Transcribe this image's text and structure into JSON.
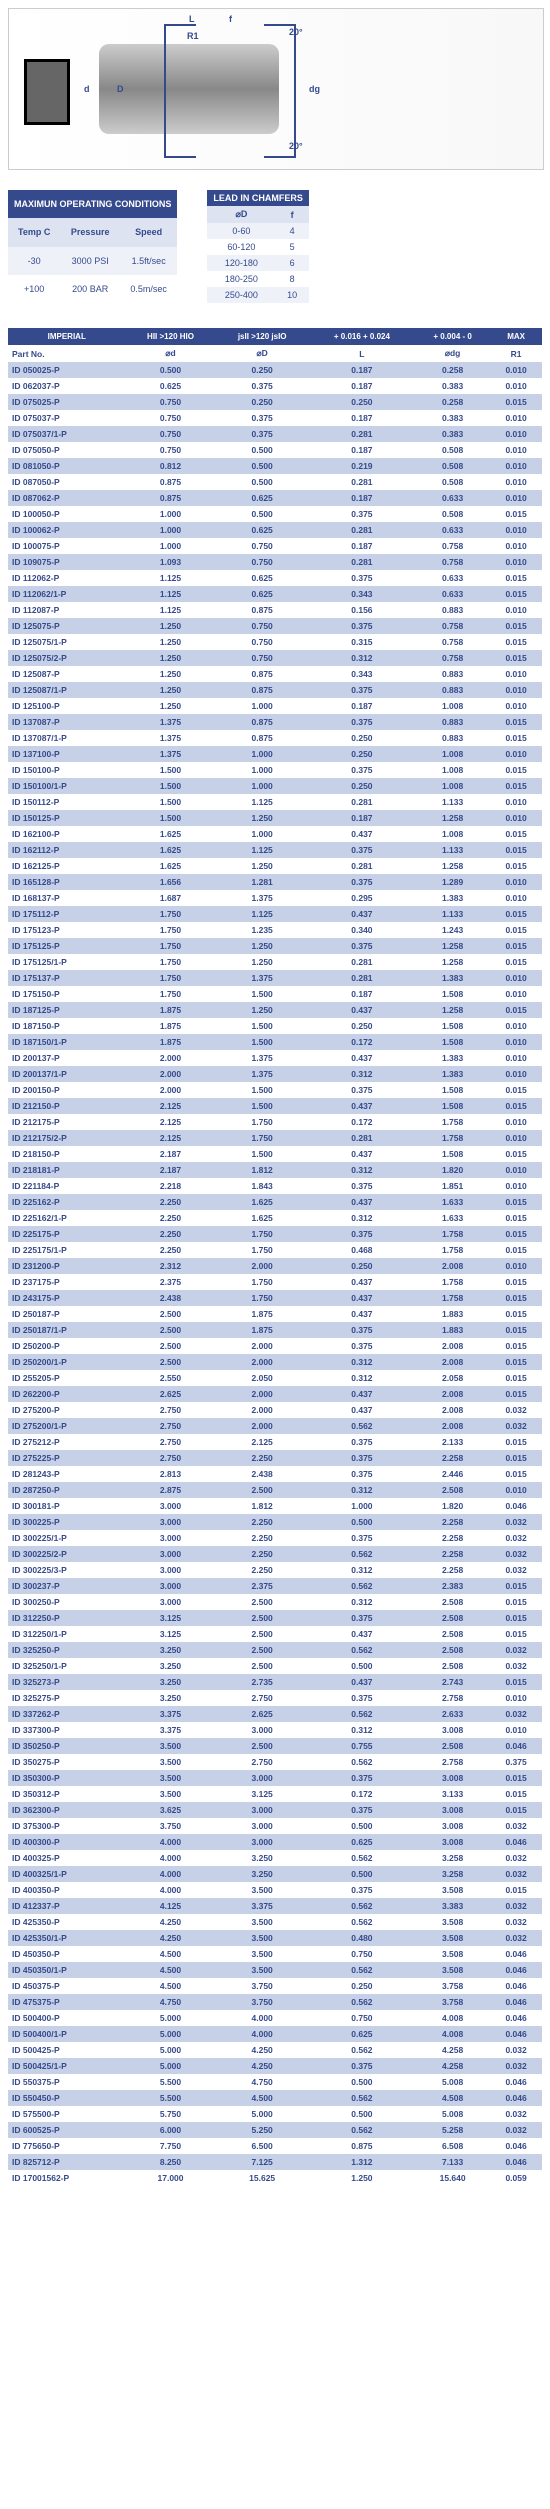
{
  "diagram": {
    "labels": {
      "d": "d",
      "D": "D",
      "dg": "dg",
      "L": "L",
      "f": "f",
      "R1": "R1",
      "angle": "20°"
    }
  },
  "operating": {
    "title": "MAXIMUN OPERATING CONDITIONS",
    "headers": [
      "Temp C",
      "Pressure",
      "Speed"
    ],
    "rows": [
      [
        "-30",
        "3000 PSI",
        "1.5ft/sec"
      ],
      [
        "+100",
        "200 BAR",
        "0.5m/sec"
      ]
    ]
  },
  "chamfers": {
    "title": "LEAD IN CHAMFERS",
    "headers": [
      "⌀D",
      "f"
    ],
    "rows": [
      [
        "0-60",
        "4"
      ],
      [
        "60-120",
        "5"
      ],
      [
        "120-180",
        "6"
      ],
      [
        "180-250",
        "8"
      ],
      [
        "250-400",
        "10"
      ]
    ]
  },
  "main": {
    "header": {
      "imperial": "IMPERIAL",
      "c1": "HII\n>120 HIO",
      "c2": "jsII\n>120 jsIO",
      "c3": "+ 0.016\n+ 0.024",
      "c4": "+ 0.004\n- 0",
      "c5": "MAX"
    },
    "sub": {
      "partno": "Part No.",
      "d": "⌀d",
      "D": "⌀D",
      "L": "L",
      "dg": "⌀dg",
      "R1": "R1"
    },
    "rows": [
      [
        "ID 050025-P",
        "0.500",
        "0.250",
        "0.187",
        "0.258",
        "0.010"
      ],
      [
        "ID 062037-P",
        "0.625",
        "0.375",
        "0.187",
        "0.383",
        "0.010"
      ],
      [
        "ID 075025-P",
        "0.750",
        "0.250",
        "0.250",
        "0.258",
        "0.015"
      ],
      [
        "ID 075037-P",
        "0.750",
        "0.375",
        "0.187",
        "0.383",
        "0.010"
      ],
      [
        "ID 075037/1-P",
        "0.750",
        "0.375",
        "0.281",
        "0.383",
        "0.010"
      ],
      [
        "ID 075050-P",
        "0.750",
        "0.500",
        "0.187",
        "0.508",
        "0.010"
      ],
      [
        "ID 081050-P",
        "0.812",
        "0.500",
        "0.219",
        "0.508",
        "0.010"
      ],
      [
        "ID 087050-P",
        "0.875",
        "0.500",
        "0.281",
        "0.508",
        "0.010"
      ],
      [
        "ID 087062-P",
        "0.875",
        "0.625",
        "0.187",
        "0.633",
        "0.010"
      ],
      [
        "ID 100050-P",
        "1.000",
        "0.500",
        "0.375",
        "0.508",
        "0.015"
      ],
      [
        "ID 100062-P",
        "1.000",
        "0.625",
        "0.281",
        "0.633",
        "0.010"
      ],
      [
        "ID 100075-P",
        "1.000",
        "0.750",
        "0.187",
        "0.758",
        "0.010"
      ],
      [
        "ID 109075-P",
        "1.093",
        "0.750",
        "0.281",
        "0.758",
        "0.010"
      ],
      [
        "ID 112062-P",
        "1.125",
        "0.625",
        "0.375",
        "0.633",
        "0.015"
      ],
      [
        "ID 112062/1-P",
        "1.125",
        "0.625",
        "0.343",
        "0.633",
        "0.015"
      ],
      [
        "ID 112087-P",
        "1.125",
        "0.875",
        "0.156",
        "0.883",
        "0.010"
      ],
      [
        "ID 125075-P",
        "1.250",
        "0.750",
        "0.375",
        "0.758",
        "0.015"
      ],
      [
        "ID 125075/1-P",
        "1.250",
        "0.750",
        "0.315",
        "0.758",
        "0.015"
      ],
      [
        "ID 125075/2-P",
        "1.250",
        "0.750",
        "0.312",
        "0.758",
        "0.015"
      ],
      [
        "ID 125087-P",
        "1.250",
        "0.875",
        "0.343",
        "0.883",
        "0.010"
      ],
      [
        "ID 125087/1-P",
        "1.250",
        "0.875",
        "0.375",
        "0.883",
        "0.010"
      ],
      [
        "ID 125100-P",
        "1.250",
        "1.000",
        "0.187",
        "1.008",
        "0.010"
      ],
      [
        "ID 137087-P",
        "1.375",
        "0.875",
        "0.375",
        "0.883",
        "0.015"
      ],
      [
        "ID 137087/1-P",
        "1.375",
        "0.875",
        "0.250",
        "0.883",
        "0.015"
      ],
      [
        "ID 137100-P",
        "1.375",
        "1.000",
        "0.250",
        "1.008",
        "0.010"
      ],
      [
        "ID 150100-P",
        "1.500",
        "1.000",
        "0.375",
        "1.008",
        "0.015"
      ],
      [
        "ID 150100/1-P",
        "1.500",
        "1.000",
        "0.250",
        "1.008",
        "0.015"
      ],
      [
        "ID 150112-P",
        "1.500",
        "1.125",
        "0.281",
        "1.133",
        "0.010"
      ],
      [
        "ID 150125-P",
        "1.500",
        "1.250",
        "0.187",
        "1.258",
        "0.010"
      ],
      [
        "ID 162100-P",
        "1.625",
        "1.000",
        "0.437",
        "1.008",
        "0.015"
      ],
      [
        "ID 162112-P",
        "1.625",
        "1.125",
        "0.375",
        "1.133",
        "0.015"
      ],
      [
        "ID 162125-P",
        "1.625",
        "1.250",
        "0.281",
        "1.258",
        "0.015"
      ],
      [
        "ID 165128-P",
        "1.656",
        "1.281",
        "0.375",
        "1.289",
        "0.010"
      ],
      [
        "ID 168137-P",
        "1.687",
        "1.375",
        "0.295",
        "1.383",
        "0.010"
      ],
      [
        "ID 175112-P",
        "1.750",
        "1.125",
        "0.437",
        "1.133",
        "0.015"
      ],
      [
        "ID 175123-P",
        "1.750",
        "1.235",
        "0.340",
        "1.243",
        "0.015"
      ],
      [
        "ID 175125-P",
        "1.750",
        "1.250",
        "0.375",
        "1.258",
        "0.015"
      ],
      [
        "ID 175125/1-P",
        "1.750",
        "1.250",
        "0.281",
        "1.258",
        "0.015"
      ],
      [
        "ID 175137-P",
        "1.750",
        "1.375",
        "0.281",
        "1.383",
        "0.010"
      ],
      [
        "ID 175150-P",
        "1.750",
        "1.500",
        "0.187",
        "1.508",
        "0.010"
      ],
      [
        "ID 187125-P",
        "1.875",
        "1.250",
        "0.437",
        "1.258",
        "0.015"
      ],
      [
        "ID 187150-P",
        "1.875",
        "1.500",
        "0.250",
        "1.508",
        "0.010"
      ],
      [
        "ID 187150/1-P",
        "1.875",
        "1.500",
        "0.172",
        "1.508",
        "0.010"
      ],
      [
        "ID 200137-P",
        "2.000",
        "1.375",
        "0.437",
        "1.383",
        "0.010"
      ],
      [
        "ID 200137/1-P",
        "2.000",
        "1.375",
        "0.312",
        "1.383",
        "0.010"
      ],
      [
        "ID 200150-P",
        "2.000",
        "1.500",
        "0.375",
        "1.508",
        "0.015"
      ],
      [
        "ID 212150-P",
        "2.125",
        "1.500",
        "0.437",
        "1.508",
        "0.015"
      ],
      [
        "ID 212175-P",
        "2.125",
        "1.750",
        "0.172",
        "1.758",
        "0.010"
      ],
      [
        "ID 212175/2-P",
        "2.125",
        "1.750",
        "0.281",
        "1.758",
        "0.010"
      ],
      [
        "ID 218150-P",
        "2.187",
        "1.500",
        "0.437",
        "1.508",
        "0.015"
      ],
      [
        "ID 218181-P",
        "2.187",
        "1.812",
        "0.312",
        "1.820",
        "0.010"
      ],
      [
        "ID 221184-P",
        "2.218",
        "1.843",
        "0.375",
        "1.851",
        "0.010"
      ],
      [
        "ID 225162-P",
        "2.250",
        "1.625",
        "0.437",
        "1.633",
        "0.015"
      ],
      [
        "ID 225162/1-P",
        "2.250",
        "1.625",
        "0.312",
        "1.633",
        "0.015"
      ],
      [
        "ID 225175-P",
        "2.250",
        "1.750",
        "0.375",
        "1.758",
        "0.015"
      ],
      [
        "ID 225175/1-P",
        "2.250",
        "1.750",
        "0.468",
        "1.758",
        "0.015"
      ],
      [
        "ID 231200-P",
        "2.312",
        "2.000",
        "0.250",
        "2.008",
        "0.010"
      ],
      [
        "ID 237175-P",
        "2.375",
        "1.750",
        "0.437",
        "1.758",
        "0.015"
      ],
      [
        "ID 243175-P",
        "2.438",
        "1.750",
        "0.437",
        "1.758",
        "0.015"
      ],
      [
        "ID 250187-P",
        "2.500",
        "1.875",
        "0.437",
        "1.883",
        "0.015"
      ],
      [
        "ID 250187/1-P",
        "2.500",
        "1.875",
        "0.375",
        "1.883",
        "0.015"
      ],
      [
        "ID 250200-P",
        "2.500",
        "2.000",
        "0.375",
        "2.008",
        "0.015"
      ],
      [
        "ID 250200/1-P",
        "2.500",
        "2.000",
        "0.312",
        "2.008",
        "0.015"
      ],
      [
        "ID 255205-P",
        "2.550",
        "2.050",
        "0.312",
        "2.058",
        "0.015"
      ],
      [
        "ID 262200-P",
        "2.625",
        "2.000",
        "0.437",
        "2.008",
        "0.015"
      ],
      [
        "ID 275200-P",
        "2.750",
        "2.000",
        "0.437",
        "2.008",
        "0.032"
      ],
      [
        "ID 275200/1-P",
        "2.750",
        "2.000",
        "0.562",
        "2.008",
        "0.032"
      ],
      [
        "ID 275212-P",
        "2.750",
        "2.125",
        "0.375",
        "2.133",
        "0.015"
      ],
      [
        "ID 275225-P",
        "2.750",
        "2.250",
        "0.375",
        "2.258",
        "0.015"
      ],
      [
        "ID 281243-P",
        "2.813",
        "2.438",
        "0.375",
        "2.446",
        "0.015"
      ],
      [
        "ID 287250-P",
        "2.875",
        "2.500",
        "0.312",
        "2.508",
        "0.010"
      ],
      [
        "ID 300181-P",
        "3.000",
        "1.812",
        "1.000",
        "1.820",
        "0.046"
      ],
      [
        "ID 300225-P",
        "3.000",
        "2.250",
        "0.500",
        "2.258",
        "0.032"
      ],
      [
        "ID 300225/1-P",
        "3.000",
        "2.250",
        "0.375",
        "2.258",
        "0.032"
      ],
      [
        "ID 300225/2-P",
        "3.000",
        "2.250",
        "0.562",
        "2.258",
        "0.032"
      ],
      [
        "ID 300225/3-P",
        "3.000",
        "2.250",
        "0.312",
        "2.258",
        "0.032"
      ],
      [
        "ID 300237-P",
        "3.000",
        "2.375",
        "0.562",
        "2.383",
        "0.015"
      ],
      [
        "ID 300250-P",
        "3.000",
        "2.500",
        "0.312",
        "2.508",
        "0.015"
      ],
      [
        "ID 312250-P",
        "3.125",
        "2.500",
        "0.375",
        "2.508",
        "0.015"
      ],
      [
        "ID 312250/1-P",
        "3.125",
        "2.500",
        "0.437",
        "2.508",
        "0.015"
      ],
      [
        "ID 325250-P",
        "3.250",
        "2.500",
        "0.562",
        "2.508",
        "0.032"
      ],
      [
        "ID 325250/1-P",
        "3.250",
        "2.500",
        "0.500",
        "2.508",
        "0.032"
      ],
      [
        "ID 325273-P",
        "3.250",
        "2.735",
        "0.437",
        "2.743",
        "0.015"
      ],
      [
        "ID 325275-P",
        "3.250",
        "2.750",
        "0.375",
        "2.758",
        "0.010"
      ],
      [
        "ID 337262-P",
        "3.375",
        "2.625",
        "0.562",
        "2.633",
        "0.032"
      ],
      [
        "ID 337300-P",
        "3.375",
        "3.000",
        "0.312",
        "3.008",
        "0.010"
      ],
      [
        "ID 350250-P",
        "3.500",
        "2.500",
        "0.755",
        "2.508",
        "0.046"
      ],
      [
        "ID 350275-P",
        "3.500",
        "2.750",
        "0.562",
        "2.758",
        "0.375"
      ],
      [
        "ID 350300-P",
        "3.500",
        "3.000",
        "0.375",
        "3.008",
        "0.015"
      ],
      [
        "ID 350312-P",
        "3.500",
        "3.125",
        "0.172",
        "3.133",
        "0.015"
      ],
      [
        "ID 362300-P",
        "3.625",
        "3.000",
        "0.375",
        "3.008",
        "0.015"
      ],
      [
        "ID 375300-P",
        "3.750",
        "3.000",
        "0.500",
        "3.008",
        "0.032"
      ],
      [
        "ID 400300-P",
        "4.000",
        "3.000",
        "0.625",
        "3.008",
        "0.046"
      ],
      [
        "ID 400325-P",
        "4.000",
        "3.250",
        "0.562",
        "3.258",
        "0.032"
      ],
      [
        "ID 400325/1-P",
        "4.000",
        "3.250",
        "0.500",
        "3.258",
        "0.032"
      ],
      [
        "ID 400350-P",
        "4.000",
        "3.500",
        "0.375",
        "3.508",
        "0.015"
      ],
      [
        "ID 412337-P",
        "4.125",
        "3.375",
        "0.562",
        "3.383",
        "0.032"
      ],
      [
        "ID 425350-P",
        "4.250",
        "3.500",
        "0.562",
        "3.508",
        "0.032"
      ],
      [
        "ID 425350/1-P",
        "4.250",
        "3.500",
        "0.480",
        "3.508",
        "0.032"
      ],
      [
        "ID 450350-P",
        "4.500",
        "3.500",
        "0.750",
        "3.508",
        "0.046"
      ],
      [
        "ID 450350/1-P",
        "4.500",
        "3.500",
        "0.562",
        "3.508",
        "0.046"
      ],
      [
        "ID 450375-P",
        "4.500",
        "3.750",
        "0.250",
        "3.758",
        "0.046"
      ],
      [
        "ID 475375-P",
        "4.750",
        "3.750",
        "0.562",
        "3.758",
        "0.046"
      ],
      [
        "ID 500400-P",
        "5.000",
        "4.000",
        "0.750",
        "4.008",
        "0.046"
      ],
      [
        "ID 500400/1-P",
        "5.000",
        "4.000",
        "0.625",
        "4.008",
        "0.046"
      ],
      [
        "ID 500425-P",
        "5.000",
        "4.250",
        "0.562",
        "4.258",
        "0.032"
      ],
      [
        "ID 500425/1-P",
        "5.000",
        "4.250",
        "0.375",
        "4.258",
        "0.032"
      ],
      [
        "ID 550375-P",
        "5.500",
        "4.750",
        "0.500",
        "5.008",
        "0.046"
      ],
      [
        "ID 550450-P",
        "5.500",
        "4.500",
        "0.562",
        "4.508",
        "0.046"
      ],
      [
        "ID 575500-P",
        "5.750",
        "5.000",
        "0.500",
        "5.008",
        "0.032"
      ],
      [
        "ID 600525-P",
        "6.000",
        "5.250",
        "0.562",
        "5.258",
        "0.032"
      ],
      [
        "ID 775650-P",
        "7.750",
        "6.500",
        "0.875",
        "6.508",
        "0.046"
      ],
      [
        "ID 825712-P",
        "8.250",
        "7.125",
        "1.312",
        "7.133",
        "0.046"
      ],
      [
        "ID 17001562-P",
        "17.000",
        "15.625",
        "1.250",
        "15.640",
        "0.059"
      ]
    ]
  }
}
